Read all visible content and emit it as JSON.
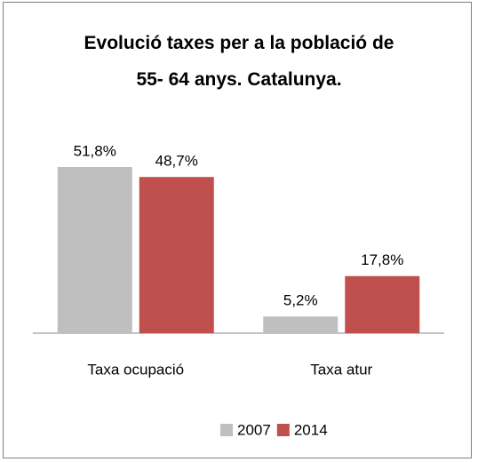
{
  "chart_data": {
    "type": "bar",
    "title": "Evolució taxes per a la població de 55- 64 anys. Catalunya.",
    "categories": [
      "Taxa ocupació",
      "Taxa atur"
    ],
    "series": [
      {
        "name": "2007",
        "color": "#bfbfbf",
        "values": [
          51.8,
          5.2
        ],
        "value_labels": [
          "51,8%",
          "5,2%"
        ]
      },
      {
        "name": "2014",
        "color": "#c0504d",
        "values": [
          48.7,
          17.8
        ],
        "value_labels": [
          "48,7%",
          "17,8%"
        ]
      }
    ],
    "legend": "bottom"
  }
}
